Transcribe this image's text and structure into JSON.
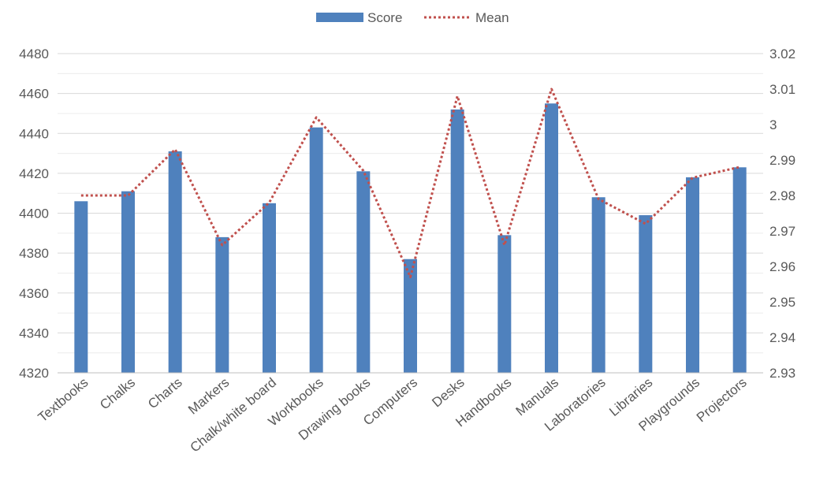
{
  "chart_data": {
    "type": "bar",
    "categories": [
      "Textbooks",
      "Chalks",
      "Charts",
      "Markers",
      "Chalk/white board",
      "Workbooks",
      "Drawing books",
      "Computers",
      "Desks",
      "Handbooks",
      "Manuals",
      "Laboratories",
      "Libraries",
      "Playgrounds",
      "Projectors"
    ],
    "series": [
      {
        "name": "Score",
        "type": "bar",
        "axis": "left",
        "color": "#4f81bd",
        "values": [
          4406,
          4411,
          4431,
          4388,
          4405,
          4443,
          4421,
          4377,
          4452,
          4389,
          4455,
          4408,
          4399,
          4418,
          4423
        ]
      },
      {
        "name": "Mean",
        "type": "line",
        "style": "dotted",
        "axis": "right",
        "color": "#c0504d",
        "values": [
          2.98,
          2.98,
          2.993,
          2.966,
          2.978,
          3.002,
          2.987,
          2.957,
          3.008,
          2.966,
          3.01,
          2.979,
          2.972,
          2.985,
          2.988
        ]
      }
    ],
    "y_left": {
      "min": 4320,
      "max": 4480,
      "ticks": [
        "4320",
        "4340",
        "4360",
        "4380",
        "4400",
        "4420",
        "4440",
        "4460",
        "4480"
      ]
    },
    "y_right": {
      "min": 2.93,
      "max": 3.02,
      "ticks": [
        "2.93",
        "2.94",
        "2.95",
        "2.96",
        "2.97",
        "2.98",
        "2.99",
        "3",
        "3.01",
        "3.02"
      ]
    },
    "title": "",
    "xlabel": "",
    "ylabel": "",
    "grid": true,
    "legend_position": "top-center"
  }
}
